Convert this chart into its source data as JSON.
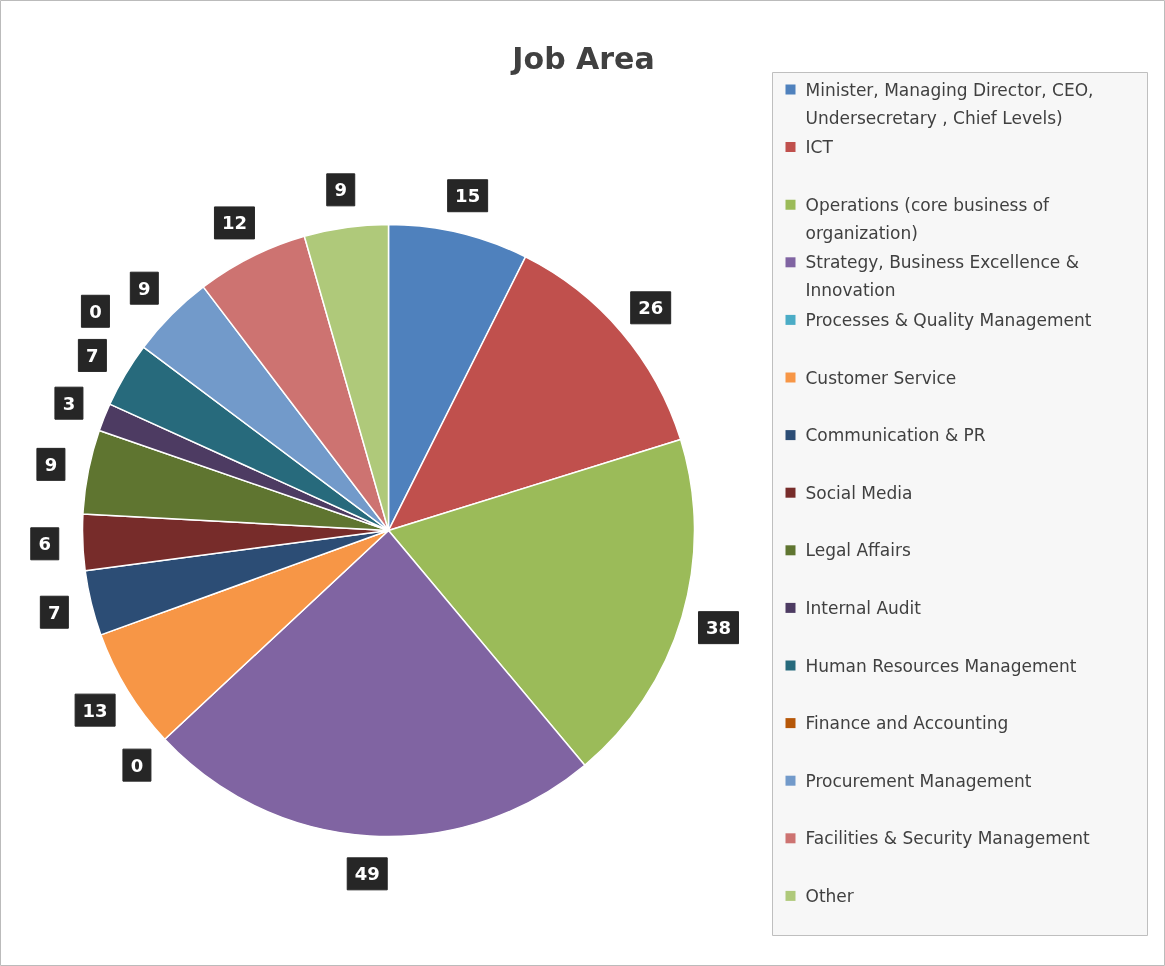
{
  "chart_data": {
    "type": "pie",
    "title": "Job Area",
    "categories": [
      "Minister, Managing Director, CEO, Undersecretary , Chief Levels)",
      "ICT",
      "Operations (core business of organization)",
      "Strategy, Business Excellence & Innovation",
      "Processes & Quality Management",
      "Customer Service",
      "Communication & PR",
      "Social Media",
      "Legal Affairs",
      "Internal Audit",
      "Human Resources Management",
      "Finance and Accounting",
      "Procurement Management",
      "Facilities & Security Management",
      "Other"
    ],
    "values": [
      15,
      26,
      38,
      49,
      0,
      13,
      7,
      6,
      9,
      3,
      7,
      0,
      9,
      12,
      9
    ],
    "colors": [
      "#4f81bd",
      "#c0504d",
      "#9bbb59",
      "#8064a2",
      "#4bacc6",
      "#f79646",
      "#2c4d75",
      "#772c2a",
      "#5f7530",
      "#4d3b62",
      "#276a7c",
      "#b65708",
      "#729aca",
      "#cd7371",
      "#afc97a"
    ],
    "value_labels": [
      "15",
      "26",
      "38",
      "49",
      "0",
      "13",
      "7",
      "6",
      "9",
      "3",
      "7",
      "0",
      "9",
      "12",
      "9"
    ],
    "legend": "right"
  }
}
